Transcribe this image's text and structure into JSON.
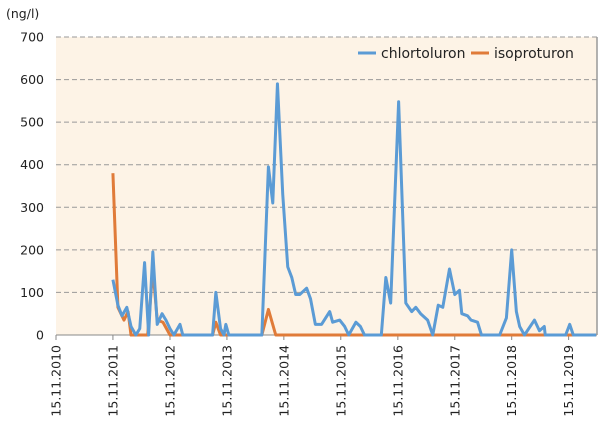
{
  "chart_data": {
    "type": "line",
    "title": "",
    "ylabel": "(ng/l)",
    "xlabel": "",
    "ylim": [
      0,
      700
    ],
    "yticks": [
      0,
      100,
      200,
      300,
      400,
      500,
      600,
      700
    ],
    "xlim": [
      "2010-11-15",
      "2020-05-15"
    ],
    "xticks": [
      "15.11.2010",
      "15.11.2011",
      "15.11.2012",
      "15.11.2013",
      "15.11.2014",
      "15.11.2015",
      "15.11.2016",
      "15.11.2017",
      "15.11.2018",
      "15.11.2019"
    ],
    "grid": "horizontal dashed",
    "legend": "top-right",
    "background": "#fdf3e6",
    "series": [
      {
        "name": "chlortoluron",
        "color": "#5b9bd5",
        "points": [
          [
            "2011-11-15",
            130
          ],
          [
            "2011-12-17",
            70
          ],
          [
            "2012-01-12",
            45
          ],
          [
            "2012-02-12",
            65
          ],
          [
            "2012-03-10",
            20
          ],
          [
            "2012-04-10",
            0
          ],
          [
            "2012-05-05",
            15
          ],
          [
            "2012-06-05",
            170
          ],
          [
            "2012-07-01",
            0
          ],
          [
            "2012-07-28",
            195
          ],
          [
            "2012-08-25",
            25
          ],
          [
            "2012-09-25",
            50
          ],
          [
            "2012-10-20",
            35
          ],
          [
            "2012-11-15",
            15
          ],
          [
            "2012-12-10",
            0
          ],
          [
            "2013-01-18",
            25
          ],
          [
            "2013-02-05",
            0
          ],
          [
            "2013-08-15",
            0
          ],
          [
            "2013-09-05",
            100
          ],
          [
            "2013-10-05",
            15
          ],
          [
            "2013-10-27",
            0
          ],
          [
            "2013-11-08",
            25
          ],
          [
            "2013-11-27",
            0
          ],
          [
            "2014-06-27",
            0
          ],
          [
            "2014-08-08",
            395
          ],
          [
            "2014-09-05",
            310
          ],
          [
            "2014-10-05",
            590
          ],
          [
            "2014-11-08",
            330
          ],
          [
            "2014-12-10",
            160
          ],
          [
            "2015-01-05",
            135
          ],
          [
            "2015-01-30",
            95
          ],
          [
            "2015-02-25",
            95
          ],
          [
            "2015-04-10",
            110
          ],
          [
            "2015-05-05",
            85
          ],
          [
            "2015-06-05",
            25
          ],
          [
            "2015-07-15",
            25
          ],
          [
            "2015-09-05",
            55
          ],
          [
            "2015-09-24",
            30
          ],
          [
            "2015-11-08",
            35
          ],
          [
            "2015-12-10",
            20
          ],
          [
            "2016-01-05",
            0
          ],
          [
            "2016-02-20",
            30
          ],
          [
            "2016-03-20",
            20
          ],
          [
            "2016-04-15",
            0
          ],
          [
            "2016-08-01",
            0
          ],
          [
            "2016-08-30",
            135
          ],
          [
            "2016-09-30",
            75
          ],
          [
            "2016-11-20",
            548
          ],
          [
            "2017-01-05",
            75
          ],
          [
            "2017-02-12",
            55
          ],
          [
            "2017-03-10",
            65
          ],
          [
            "2017-04-10",
            50
          ],
          [
            "2017-05-25",
            35
          ],
          [
            "2017-06-27",
            0
          ],
          [
            "2017-08-01",
            70
          ],
          [
            "2017-08-30",
            65
          ],
          [
            "2017-10-12",
            155
          ],
          [
            "2017-11-15",
            95
          ],
          [
            "2017-12-15",
            105
          ],
          [
            "2017-12-30",
            50
          ],
          [
            "2018-02-05",
            45
          ],
          [
            "2018-02-27",
            35
          ],
          [
            "2018-04-10",
            30
          ],
          [
            "2018-05-05",
            0
          ],
          [
            "2018-08-30",
            0
          ],
          [
            "2018-10-12",
            40
          ],
          [
            "2018-11-15",
            200
          ],
          [
            "2018-12-15",
            55
          ],
          [
            "2019-01-05",
            20
          ],
          [
            "2019-02-05",
            0
          ],
          [
            "2019-04-10",
            35
          ],
          [
            "2019-05-12",
            10
          ],
          [
            "2019-06-12",
            20
          ],
          [
            "2019-06-18",
            0
          ],
          [
            "2019-10-27",
            0
          ],
          [
            "2019-11-22",
            25
          ],
          [
            "2019-12-15",
            0
          ],
          [
            "2020-05-10",
            0
          ]
        ]
      },
      {
        "name": "isoproturon",
        "color": "#e07b39",
        "points": [
          [
            "2011-11-15",
            380
          ],
          [
            "2011-12-17",
            65
          ],
          [
            "2012-01-25",
            35
          ],
          [
            "2012-02-20",
            55
          ],
          [
            "2012-03-10",
            0
          ],
          [
            "2012-06-25",
            0
          ],
          [
            "2012-07-28",
            155
          ],
          [
            "2012-08-25",
            35
          ],
          [
            "2012-10-01",
            30
          ],
          [
            "2012-11-15",
            0
          ],
          [
            "2013-08-15",
            0
          ],
          [
            "2013-09-05",
            30
          ],
          [
            "2013-10-05",
            0
          ],
          [
            "2014-06-27",
            0
          ],
          [
            "2014-08-08",
            60
          ],
          [
            "2014-09-24",
            0
          ],
          [
            "2020-05-10",
            0
          ]
        ]
      }
    ]
  }
}
